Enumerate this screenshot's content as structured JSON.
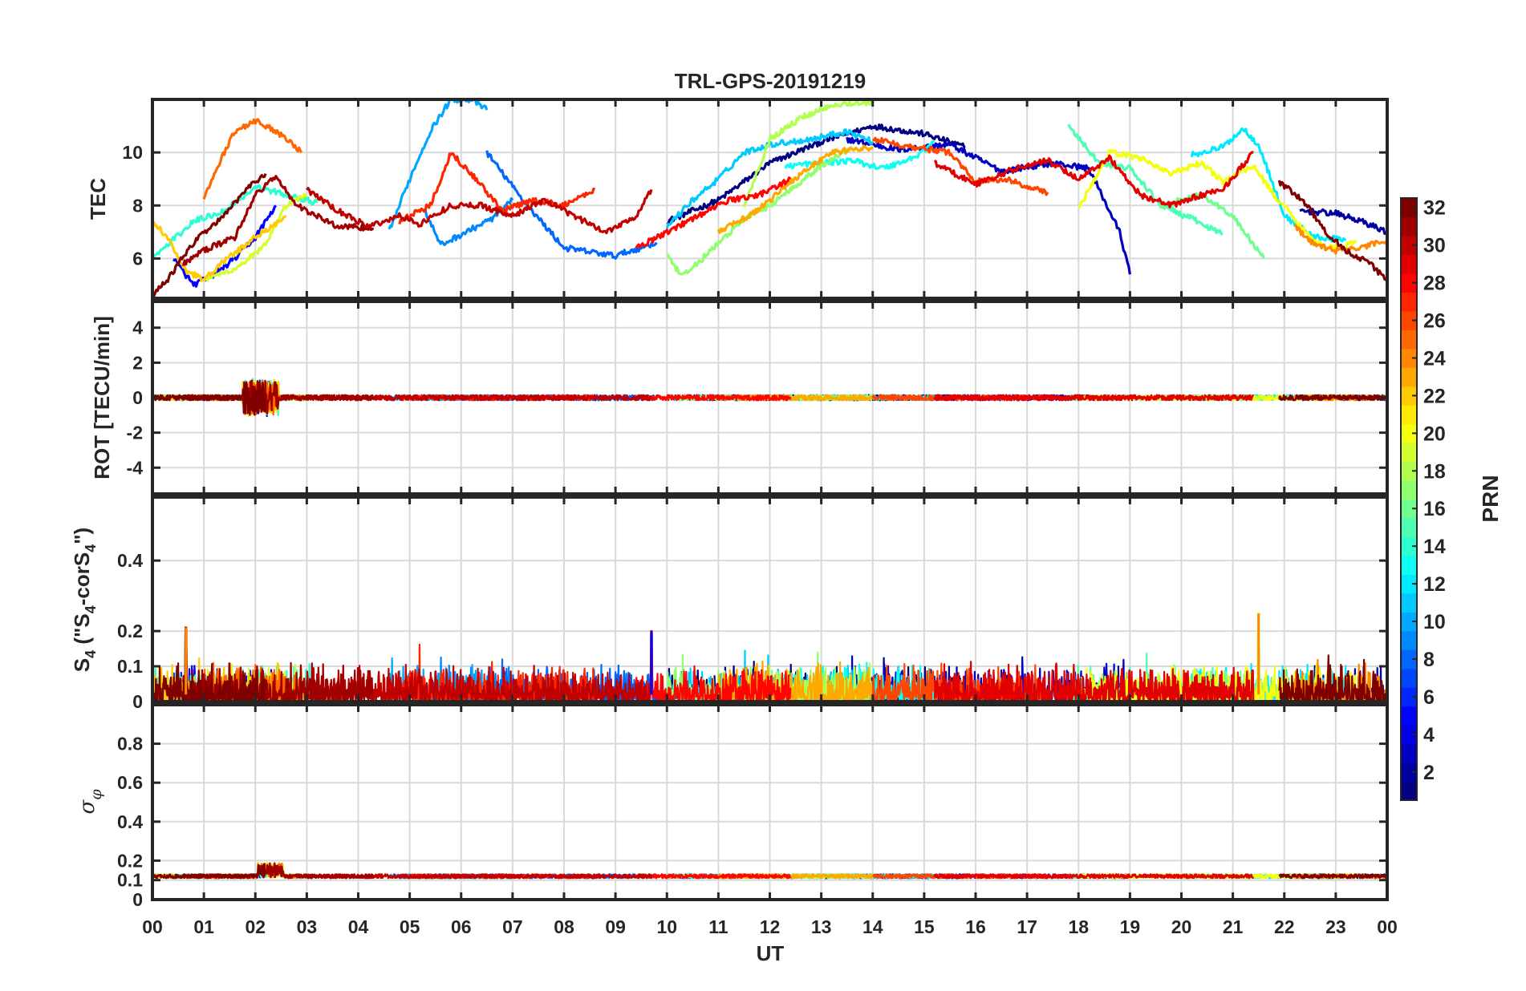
{
  "chart_data": {
    "type": "line",
    "title": "TRL-GPS-20191219",
    "xlabel": "UT",
    "xlim": [
      0,
      24
    ],
    "x_tick_labels": [
      "00",
      "01",
      "02",
      "03",
      "04",
      "05",
      "06",
      "07",
      "08",
      "09",
      "10",
      "11",
      "12",
      "13",
      "14",
      "15",
      "16",
      "17",
      "18",
      "19",
      "20",
      "21",
      "22",
      "23",
      "00"
    ],
    "colorbar": {
      "label": "PRN",
      "range": [
        1,
        32
      ],
      "colormap": "jet",
      "tick_values": [
        2,
        4,
        6,
        8,
        10,
        12,
        14,
        16,
        18,
        20,
        22,
        24,
        26,
        28,
        30,
        32
      ]
    },
    "panels": [
      {
        "id": "tec",
        "ylabel": "TEC",
        "ylim": [
          4.5,
          12
        ],
        "yticks": [
          6,
          8,
          10
        ],
        "series": [
          {
            "prn": 1,
            "x": [
              10.0,
              11.0,
              12.0,
              13.0,
              14.0,
              15.0,
              15.8
            ],
            "y": [
              7.4,
              8.2,
              9.6,
              10.4,
              11.0,
              10.7,
              10.2
            ]
          },
          {
            "prn": 3,
            "x": [
              13.5,
              14.5,
              15.5,
              16.5,
              17.5,
              18.2,
              18.8,
              19.0
            ],
            "y": [
              10.5,
              10.1,
              10.3,
              9.3,
              9.6,
              9.4,
              7.0,
              5.4
            ]
          },
          {
            "prn": 2,
            "x": [
              22.3,
              23.0,
              23.5,
              24.0
            ],
            "y": [
              7.8,
              7.7,
              7.4,
              7.0
            ]
          },
          {
            "prn": 5,
            "x": [
              0.4,
              0.8,
              1.2,
              1.6,
              2.0,
              2.4
            ],
            "y": [
              6.0,
              5.0,
              5.4,
              6.0,
              6.8,
              8.0
            ]
          },
          {
            "prn": 8,
            "x": [
              6.5,
              7.2,
              8.0,
              9.0,
              9.8
            ],
            "y": [
              10.0,
              8.2,
              6.4,
              6.1,
              6.6
            ]
          },
          {
            "prn": 9,
            "x": [
              5.3,
              5.6,
              6.0,
              6.6,
              7.0
            ],
            "y": [
              7.8,
              6.5,
              6.9,
              7.5,
              8.2
            ]
          },
          {
            "prn": 10,
            "x": [
              4.6,
              5.0,
              5.4,
              5.8,
              6.2,
              6.5
            ],
            "y": [
              7.0,
              9.0,
              10.8,
              12.0,
              12.0,
              11.6
            ]
          },
          {
            "prn": 11,
            "x": [
              10.0,
              10.5,
              11.0,
              11.5,
              12.0,
              12.8,
              13.5,
              14.0
            ],
            "y": [
              7.2,
              8.2,
              9.0,
              10.0,
              10.3,
              10.5,
              10.8,
              10.4
            ]
          },
          {
            "prn": 12,
            "x": [
              20.2,
              20.8,
              21.2,
              21.5,
              22.0,
              22.6,
              23.2
            ],
            "y": [
              9.9,
              10.2,
              10.9,
              10.3,
              7.6,
              6.8,
              6.7
            ]
          },
          {
            "prn": 13,
            "x": [
              12.3,
              13.0,
              13.6,
              14.2,
              14.8,
              15.2
            ],
            "y": [
              9.5,
              9.6,
              9.7,
              9.4,
              9.8,
              10.4
            ]
          },
          {
            "prn": 14,
            "x": [
              0.0,
              0.8,
              1.4,
              2.0,
              2.6,
              3.2
            ],
            "y": [
              6.0,
              7.4,
              7.8,
              8.7,
              8.4,
              8.1
            ]
          },
          {
            "prn": 15,
            "x": [
              17.8,
              18.4,
              19.0,
              19.6,
              20.2,
              20.8
            ],
            "y": [
              11.0,
              9.6,
              9.4,
              8.0,
              7.5,
              6.9
            ]
          },
          {
            "prn": 16,
            "x": [
              19.6,
              20.4,
              21.0,
              21.6
            ],
            "y": [
              8.0,
              8.4,
              7.6,
              6.0
            ]
          },
          {
            "prn": 17,
            "x": [
              10.0,
              10.3,
              10.8,
              11.5,
              12.0,
              13.0,
              13.6
            ],
            "y": [
              6.1,
              5.3,
              6.2,
              7.5,
              8.0,
              9.5,
              10.2
            ]
          },
          {
            "prn": 18,
            "x": [
              11.5,
              12.0,
              12.6,
              13.2,
              14.0
            ],
            "y": [
              8.0,
              10.5,
              11.3,
              11.8,
              11.9
            ]
          },
          {
            "prn": 19,
            "x": [
              1.0,
              1.6,
              2.2,
              2.6,
              3.0
            ],
            "y": [
              5.2,
              5.6,
              6.5,
              8.0,
              8.4
            ]
          },
          {
            "prn": 20,
            "x": [
              18.0,
              18.6,
              19.2,
              19.8,
              20.4,
              20.8,
              21.4,
              21.8,
              22.2,
              22.6,
              23.0,
              23.4
            ],
            "y": [
              7.9,
              10.0,
              9.8,
              9.2,
              9.6,
              8.9,
              9.5,
              8.4,
              7.5,
              6.6,
              6.4,
              6.6
            ]
          },
          {
            "prn": 22,
            "x": [
              0.0,
              0.3,
              0.6,
              1.0,
              1.4,
              2.0,
              2.6
            ],
            "y": [
              7.4,
              6.8,
              5.6,
              5.2,
              5.9,
              6.8,
              7.6
            ]
          },
          {
            "prn": 23,
            "x": [
              11.0,
              11.6,
              12.0,
              12.6,
              13.2,
              14.0
            ],
            "y": [
              7.0,
              7.6,
              8.2,
              9.2,
              10.0,
              10.2
            ]
          },
          {
            "prn": 24,
            "x": [
              22.2,
              22.6,
              23.0,
              23.5,
              24.0
            ],
            "y": [
              7.2,
              6.5,
              6.3,
              6.4,
              6.7
            ]
          },
          {
            "prn": 25,
            "x": [
              1.0,
              1.3,
              1.6,
              2.0,
              2.4,
              2.7,
              2.9
            ],
            "y": [
              8.3,
              9.6,
              10.8,
              11.2,
              10.8,
              10.4,
              10.0
            ]
          },
          {
            "prn": 26,
            "x": [
              14.0,
              14.8,
              15.5,
              16.0,
              16.6,
              17.0,
              17.4
            ],
            "y": [
              10.5,
              10.2,
              10.0,
              8.9,
              9.0,
              8.7,
              8.5
            ]
          },
          {
            "prn": 27,
            "x": [
              4.8,
              5.4,
              5.8,
              6.2,
              6.8,
              7.4,
              8.0,
              8.6
            ],
            "y": [
              7.4,
              8.0,
              10.0,
              9.2,
              7.8,
              8.2,
              8.0,
              8.6
            ]
          },
          {
            "prn": 28,
            "x": [
              9.4,
              10.0,
              10.6,
              11.2,
              11.8,
              12.4
            ],
            "y": [
              6.4,
              7.0,
              7.6,
              8.2,
              8.4,
              9.0
            ]
          },
          {
            "prn": 29,
            "x": [
              15.2,
              16.0,
              16.8,
              17.4,
              18.0,
              18.6,
              19.2,
              19.8,
              20.4,
              20.8,
              21.4
            ],
            "y": [
              9.6,
              8.8,
              9.4,
              9.7,
              9.0,
              9.8,
              8.4,
              8.0,
              8.4,
              8.6,
              10.0
            ]
          },
          {
            "prn": 30,
            "x": [
              3.0,
              3.6,
              4.2,
              4.8,
              5.2,
              5.8,
              6.4,
              7.0,
              7.6,
              8.2,
              8.8,
              9.4,
              9.7
            ],
            "y": [
              8.6,
              7.8,
              7.2,
              7.6,
              7.3,
              8.0,
              8.0,
              7.6,
              8.2,
              7.6,
              7.0,
              7.6,
              8.6
            ]
          },
          {
            "prn": 31,
            "x": [
              0.6,
              1.0,
              1.6,
              2.0,
              2.4,
              2.8,
              3.2,
              3.6,
              4.0,
              4.3
            ],
            "y": [
              5.8,
              6.3,
              6.8,
              8.4,
              9.1,
              8.0,
              7.6,
              7.2,
              7.2,
              7.1
            ]
          },
          {
            "prn": 32,
            "x": [
              0.0,
              0.3,
              0.6,
              1.0,
              1.4,
              1.8,
              2.2
            ],
            "y": [
              4.6,
              5.2,
              6.1,
              7.0,
              7.6,
              8.6,
              9.2
            ]
          },
          {
            "prn": 32,
            "x": [
              21.9,
              22.4,
              22.8,
              23.2,
              23.6,
              24.0
            ],
            "y": [
              8.9,
              8.1,
              7.0,
              6.3,
              5.9,
              5.2
            ]
          }
        ]
      },
      {
        "id": "rot",
        "ylabel": "ROT [TECU/min]",
        "ylim": [
          -5.5,
          5.5
        ],
        "yticks": [
          -4,
          -2,
          0,
          2,
          4
        ],
        "description_values": {
          "baseline": 0.0,
          "typical_spread": 0.15,
          "max_excursion": 1.2,
          "max_excursion_time_h": 2.1
        }
      },
      {
        "id": "s4",
        "ylabel": "S4 (\"S4-corS4\")",
        "ylim": [
          0,
          0.58
        ],
        "yticks": [
          0,
          0.1,
          0.2,
          0.4
        ],
        "description_values": {
          "typical_range": [
            0.0,
            0.1
          ],
          "peak_values": [
            {
              "time_h": 0.65,
              "value": 0.21
            },
            {
              "time_h": 9.7,
              "value": 0.2
            },
            {
              "time_h": 21.5,
              "value": 0.25
            }
          ]
        }
      },
      {
        "id": "sigma_phi",
        "ylabel": "σφ",
        "ylim": [
          0,
          1.0
        ],
        "yticks": [
          0,
          0.1,
          0.2,
          0.4,
          0.6,
          0.8
        ],
        "description_values": {
          "baseline": 0.12,
          "typical_spread": 0.01,
          "peak": {
            "time_h": 2.3,
            "value": 0.18
          }
        }
      }
    ]
  }
}
